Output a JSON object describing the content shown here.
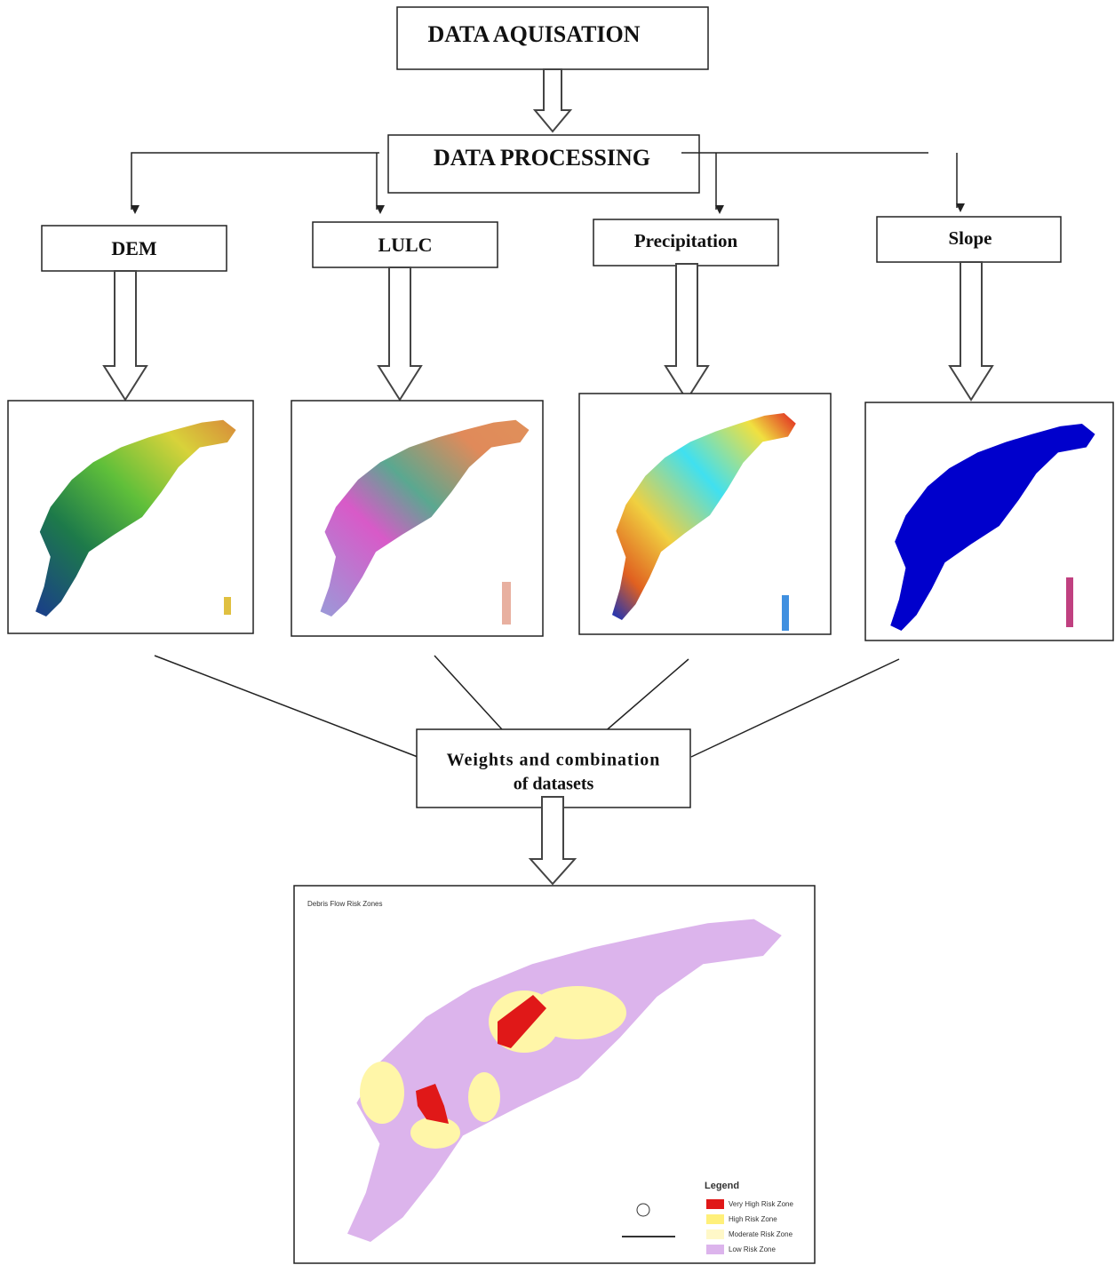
{
  "nodes": [
    {
      "label": "DATA AQUISATION"
    },
    {
      "label": "DATA PROCESSING"
    },
    {
      "label": "DEM"
    },
    {
      "label": "LULC"
    },
    {
      "label": "Precipitation"
    },
    {
      "label": "Slope"
    },
    {
      "lines": [
        "Weights and combination",
        "of datasets"
      ]
    }
  ],
  "result_map": {
    "title": "Debris Flow Risk Zones",
    "legend": {
      "title": "Legend",
      "items": [
        "Very High Risk Zone",
        "High Risk Zone",
        "Moderate Risk Zone",
        "Low Risk Zone"
      ]
    }
  }
}
